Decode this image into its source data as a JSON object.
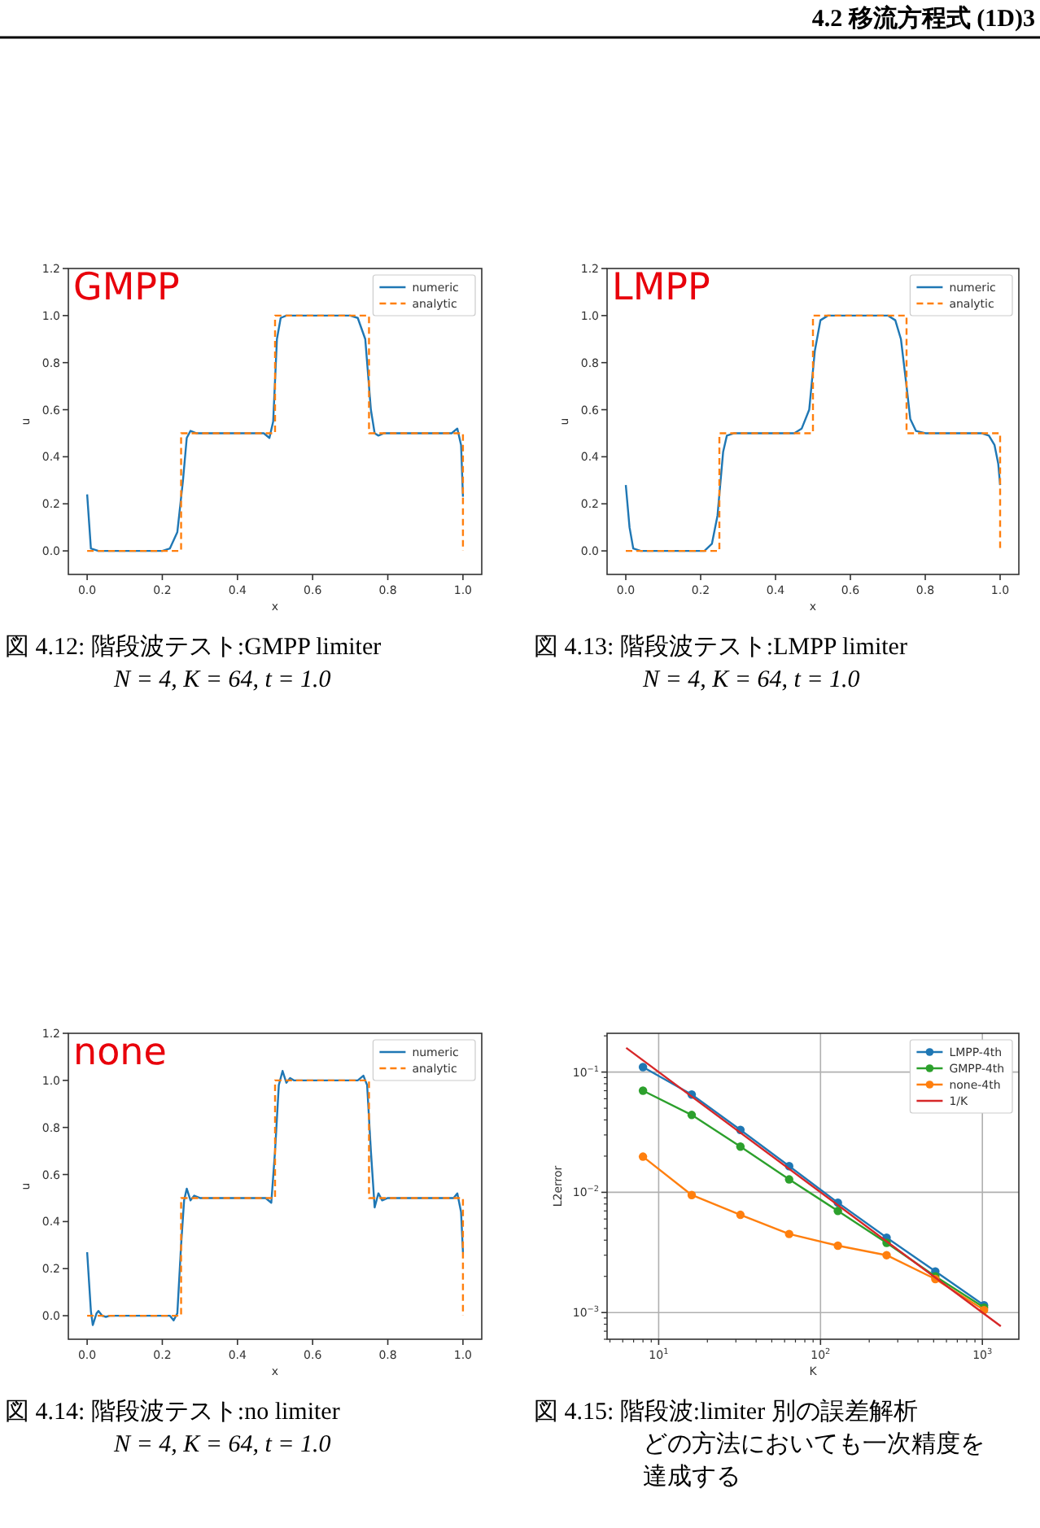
{
  "chart_data": [
    {
      "type": "line",
      "title": "GMPP",
      "xlabel": "x",
      "ylabel": "u",
      "legend": "top right",
      "xlim": [
        -0.05,
        1.05
      ],
      "ylim": [
        -0.1,
        1.2
      ],
      "xticks": [
        {
          "value": 0,
          "label": "0.0"
        },
        0.2,
        0.4,
        0.6,
        0.8,
        {
          "value": 1,
          "label": "1.0"
        }
      ],
      "yticks": [
        {
          "value": 0,
          "label": "0.0"
        },
        0.2,
        0.4,
        0.6,
        0.8,
        {
          "value": 1,
          "label": "1.0"
        },
        1.2
      ],
      "annotations": [
        "4.2 移流方程式 (1D)3",
        "図 4.12: 階段波テスト:GMPP limiter",
        "N = 4, K = 64, t = 1.0"
      ],
      "series": [
        {
          "name": "numeric",
          "color": "#1f77b4",
          "line_style": "solid",
          "x": [
            0,
            0.01,
            0.03,
            0.2,
            0.22,
            0.24,
            0.255,
            0.265,
            0.275,
            0.29,
            0.47,
            0.485,
            0.495,
            0.505,
            0.515,
            0.53,
            0.7,
            0.72,
            0.74,
            0.755,
            0.765,
            0.775,
            0.79,
            0.97,
            0.985,
            0.995,
            1.0
          ],
          "values": [
            0.24,
            0.01,
            0.0,
            0.0,
            0.01,
            0.08,
            0.3,
            0.48,
            0.51,
            0.5,
            0.5,
            0.48,
            0.55,
            0.9,
            0.99,
            1.0,
            1.0,
            0.99,
            0.9,
            0.6,
            0.5,
            0.49,
            0.5,
            0.5,
            0.52,
            0.45,
            0.23
          ]
        },
        {
          "name": "analytic",
          "color": "#ff7f0e",
          "line_style": "dashed",
          "x": [
            0,
            0.25,
            0.25,
            0.5,
            0.5,
            0.75,
            0.75,
            1.0,
            1.0
          ],
          "values": [
            0,
            0,
            0.5,
            0.5,
            1,
            1,
            0.5,
            0.5,
            0
          ]
        }
      ]
    },
    {
      "type": "line",
      "title": "LMPP",
      "xlabel": "x",
      "ylabel": "u",
      "legend": "top right",
      "xlim": [
        -0.05,
        1.05
      ],
      "ylim": [
        -0.1,
        1.2
      ],
      "xticks": [
        {
          "value": 0,
          "label": "0.0"
        },
        0.2,
        0.4,
        0.6,
        0.8,
        {
          "value": 1,
          "label": "1.0"
        }
      ],
      "yticks": [
        {
          "value": 0,
          "label": "0.0"
        },
        0.2,
        0.4,
        0.6,
        0.8,
        {
          "value": 1,
          "label": "1.0"
        },
        1.2
      ],
      "annotations": [
        "図 4.13: 階段波テスト:LMPP limiter",
        "N = 4, K = 64, t = 1.0"
      ],
      "series": [
        {
          "name": "numeric",
          "color": "#1f77b4",
          "line_style": "solid",
          "x": [
            0,
            0.01,
            0.02,
            0.04,
            0.21,
            0.23,
            0.245,
            0.26,
            0.27,
            0.29,
            0.45,
            0.47,
            0.49,
            0.505,
            0.52,
            0.54,
            0.7,
            0.72,
            0.735,
            0.75,
            0.76,
            0.775,
            0.8,
            0.95,
            0.97,
            0.985,
            0.995,
            1.0
          ],
          "values": [
            0.28,
            0.1,
            0.01,
            0,
            0,
            0.03,
            0.15,
            0.42,
            0.49,
            0.5,
            0.5,
            0.52,
            0.6,
            0.85,
            0.98,
            1.0,
            1.0,
            0.98,
            0.9,
            0.7,
            0.56,
            0.51,
            0.5,
            0.5,
            0.49,
            0.45,
            0.37,
            0.28
          ]
        },
        {
          "name": "analytic",
          "color": "#ff7f0e",
          "line_style": "dashed",
          "x": [
            0,
            0.25,
            0.25,
            0.5,
            0.5,
            0.75,
            0.75,
            1.0,
            1.0
          ],
          "values": [
            0,
            0,
            0.5,
            0.5,
            1,
            1,
            0.5,
            0.5,
            0
          ]
        }
      ]
    },
    {
      "type": "line",
      "title": "none",
      "xlabel": "x",
      "ylabel": "u",
      "legend": "top right",
      "xlim": [
        -0.05,
        1.05
      ],
      "ylim": [
        -0.1,
        1.2
      ],
      "xticks": [
        {
          "value": 0,
          "label": "0.0"
        },
        0.2,
        0.4,
        0.6,
        0.8,
        {
          "value": 1,
          "label": "1.0"
        }
      ],
      "yticks": [
        {
          "value": 0,
          "label": "0.0"
        },
        0.2,
        0.4,
        0.6,
        0.8,
        {
          "value": 1,
          "label": "1.0"
        },
        1.2
      ],
      "annotations": [
        "図 4.14: 階段波テスト:no limiter",
        "N = 4, K = 64, t = 1.0"
      ],
      "series": [
        {
          "name": "numeric",
          "color": "#1f77b4",
          "line_style": "solid",
          "x": [
            0,
            0.01,
            0.015,
            0.025,
            0.03,
            0.04,
            0.05,
            0.06,
            0.22,
            0.23,
            0.24,
            0.25,
            0.258,
            0.265,
            0.275,
            0.285,
            0.3,
            0.475,
            0.49,
            0.5,
            0.51,
            0.52,
            0.53,
            0.54,
            0.55,
            0.72,
            0.735,
            0.745,
            0.755,
            0.765,
            0.775,
            0.785,
            0.8,
            0.975,
            0.985,
            0.995,
            1.0
          ],
          "values": [
            0.27,
            0.02,
            -0.04,
            0.01,
            0.02,
            0.0,
            -0.005,
            0,
            0,
            -0.02,
            0.01,
            0.3,
            0.49,
            0.54,
            0.49,
            0.51,
            0.5,
            0.5,
            0.48,
            0.7,
            0.98,
            1.04,
            0.99,
            1.01,
            1.0,
            1.0,
            1.02,
            0.98,
            0.7,
            0.46,
            0.52,
            0.49,
            0.5,
            0.5,
            0.52,
            0.44,
            0.27
          ]
        },
        {
          "name": "analytic",
          "color": "#ff7f0e",
          "line_style": "dashed",
          "x": [
            0,
            0.25,
            0.25,
            0.5,
            0.5,
            0.75,
            0.75,
            1.0,
            1.0
          ],
          "values": [
            0,
            0,
            0.5,
            0.5,
            1,
            1,
            0.5,
            0.5,
            0
          ]
        }
      ]
    },
    {
      "type": "line",
      "xlabel": "K",
      "ylabel": "L2error",
      "legend": "top right",
      "log": "xy",
      "grid": true,
      "xlim": [
        4.8,
        1680
      ],
      "ylim": [
        0.0006,
        0.21
      ],
      "xticks": [
        {
          "value": 10,
          "label": "10$^{1}$"
        },
        {
          "value": 100,
          "label": "10$^{2}$"
        },
        {
          "value": 1000,
          "label": "10$^{3}$"
        }
      ],
      "yticks": [
        {
          "value": 0.001,
          "label": "10$^{−3}$"
        },
        {
          "value": 0.01,
          "label": "10$^{−2}$"
        },
        {
          "value": 0.1,
          "label": "10$^{−1}$"
        }
      ],
      "annotations": [
        "図 4.15: 階段波:limiter 別の誤差解析",
        "どの方法においても一次精度を",
        "達成する"
      ],
      "x": [
        8,
        16,
        32,
        64,
        128,
        256,
        512,
        1024
      ],
      "series": [
        {
          "name": "LMPP-4th",
          "color": "#1f77b4",
          "marker": "circle",
          "values": [
            0.11,
            0.065,
            0.033,
            0.0165,
            0.0082,
            0.0042,
            0.0022,
            0.00115
          ]
        },
        {
          "name": "GMPP-4th",
          "color": "#2ca02c",
          "marker": "circle",
          "values": [
            0.07,
            0.044,
            0.024,
            0.0128,
            0.007,
            0.0038,
            0.002,
            0.0011
          ]
        },
        {
          "name": "none-4th",
          "color": "#ff7f0e",
          "marker": "circle",
          "values": [
            0.0198,
            0.0095,
            0.0065,
            0.0045,
            0.0036,
            0.003,
            0.0019,
            0.00105
          ]
        },
        {
          "name": "1/K",
          "color": "#d62728",
          "x": [
            6.3,
            1300
          ],
          "values": [
            0.159,
            0.000769
          ]
        }
      ]
    }
  ]
}
